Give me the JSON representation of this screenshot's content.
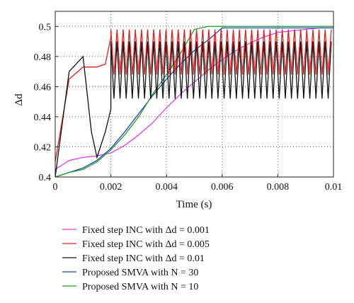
{
  "chart_data": {
    "type": "line",
    "xlabel": "Time (s)",
    "ylabel": "Δd",
    "xlim": [
      0,
      0.01
    ],
    "ylim": [
      0.4,
      0.51
    ],
    "x_ticks": [
      "0",
      "0.002",
      "0.004",
      "0.006",
      "0.008",
      "0.01"
    ],
    "y_ticks": [
      "0.4",
      "0.42",
      "0.44",
      "0.46",
      "0.48",
      "0.5"
    ],
    "grid": true,
    "legend_position": "below",
    "series": [
      {
        "name": "Fixed step INC with Δd = 0.001",
        "color": "#e040e0",
        "x": [
          0,
          0.0005,
          0.001,
          0.0015,
          0.002,
          0.0025,
          0.003,
          0.0035,
          0.004,
          0.0045,
          0.005,
          0.0055,
          0.006,
          0.0065,
          0.007,
          0.0075,
          0.008,
          0.0085,
          0.009,
          0.0095,
          0.01
        ],
        "y": [
          0.405,
          0.411,
          0.413,
          0.414,
          0.416,
          0.421,
          0.428,
          0.436,
          0.446,
          0.455,
          0.463,
          0.471,
          0.478,
          0.484,
          0.489,
          0.493,
          0.496,
          0.497,
          0.498,
          0.499,
          0.499
        ]
      },
      {
        "name": "Fixed step INC with Δd = 0.005",
        "color": "#e02020",
        "x": [
          0,
          0.0005,
          0.001,
          0.0015,
          0.0018,
          0.002,
          0.003,
          0.004,
          0.005,
          0.006,
          0.007,
          0.008,
          0.009,
          0.01
        ],
        "y": [
          0.41,
          0.465,
          0.473,
          0.473,
          0.475,
          0.493,
          0.493,
          0.493,
          0.493,
          0.493,
          0.493,
          0.493,
          0.493,
          0.493
        ]
      },
      {
        "name": "Fixed step INC with Δd = 0.01",
        "color": "#111111",
        "x": [
          0,
          0.0005,
          0.001,
          0.0013,
          0.0015,
          0.0018,
          0.002,
          0.003,
          0.004,
          0.005,
          0.006,
          0.007,
          0.008,
          0.009,
          0.01
        ],
        "y": [
          0.4,
          0.47,
          0.48,
          0.43,
          0.413,
          0.43,
          0.445,
          0.47,
          0.47,
          0.47,
          0.47,
          0.47,
          0.47,
          0.47,
          0.47
        ]
      },
      {
        "name": "Proposed SMVA with N = 30",
        "color": "#2040c0",
        "x": [
          0,
          0.0005,
          0.001,
          0.0015,
          0.002,
          0.0025,
          0.003,
          0.0035,
          0.004,
          0.0045,
          0.005,
          0.0055,
          0.006,
          0.007,
          0.008,
          0.009,
          0.01
        ],
        "y": [
          0.4,
          0.403,
          0.406,
          0.411,
          0.419,
          0.43,
          0.442,
          0.454,
          0.465,
          0.475,
          0.484,
          0.491,
          0.499,
          0.499,
          0.499,
          0.499,
          0.499
        ]
      },
      {
        "name": "Proposed SMVA with N = 10",
        "color": "#20a020",
        "x": [
          0,
          0.0005,
          0.001,
          0.0015,
          0.002,
          0.0025,
          0.003,
          0.0035,
          0.004,
          0.0045,
          0.005,
          0.0055,
          0.006,
          0.007,
          0.008,
          0.009,
          0.01
        ],
        "y": [
          0.4,
          0.403,
          0.405,
          0.41,
          0.418,
          0.428,
          0.44,
          0.455,
          0.468,
          0.482,
          0.498,
          0.5,
          0.5,
          0.5,
          0.5,
          0.5,
          0.5
        ]
      }
    ],
    "oscillation": {
      "Fixed step INC with Δd = 0.005": {
        "start": 0.002,
        "low": 0.468,
        "high": 0.498,
        "period": 0.00022
      },
      "Fixed step INC with Δd = 0.01": {
        "start": 0.002,
        "low": 0.452,
        "high": 0.49,
        "period": 0.00022
      }
    }
  }
}
